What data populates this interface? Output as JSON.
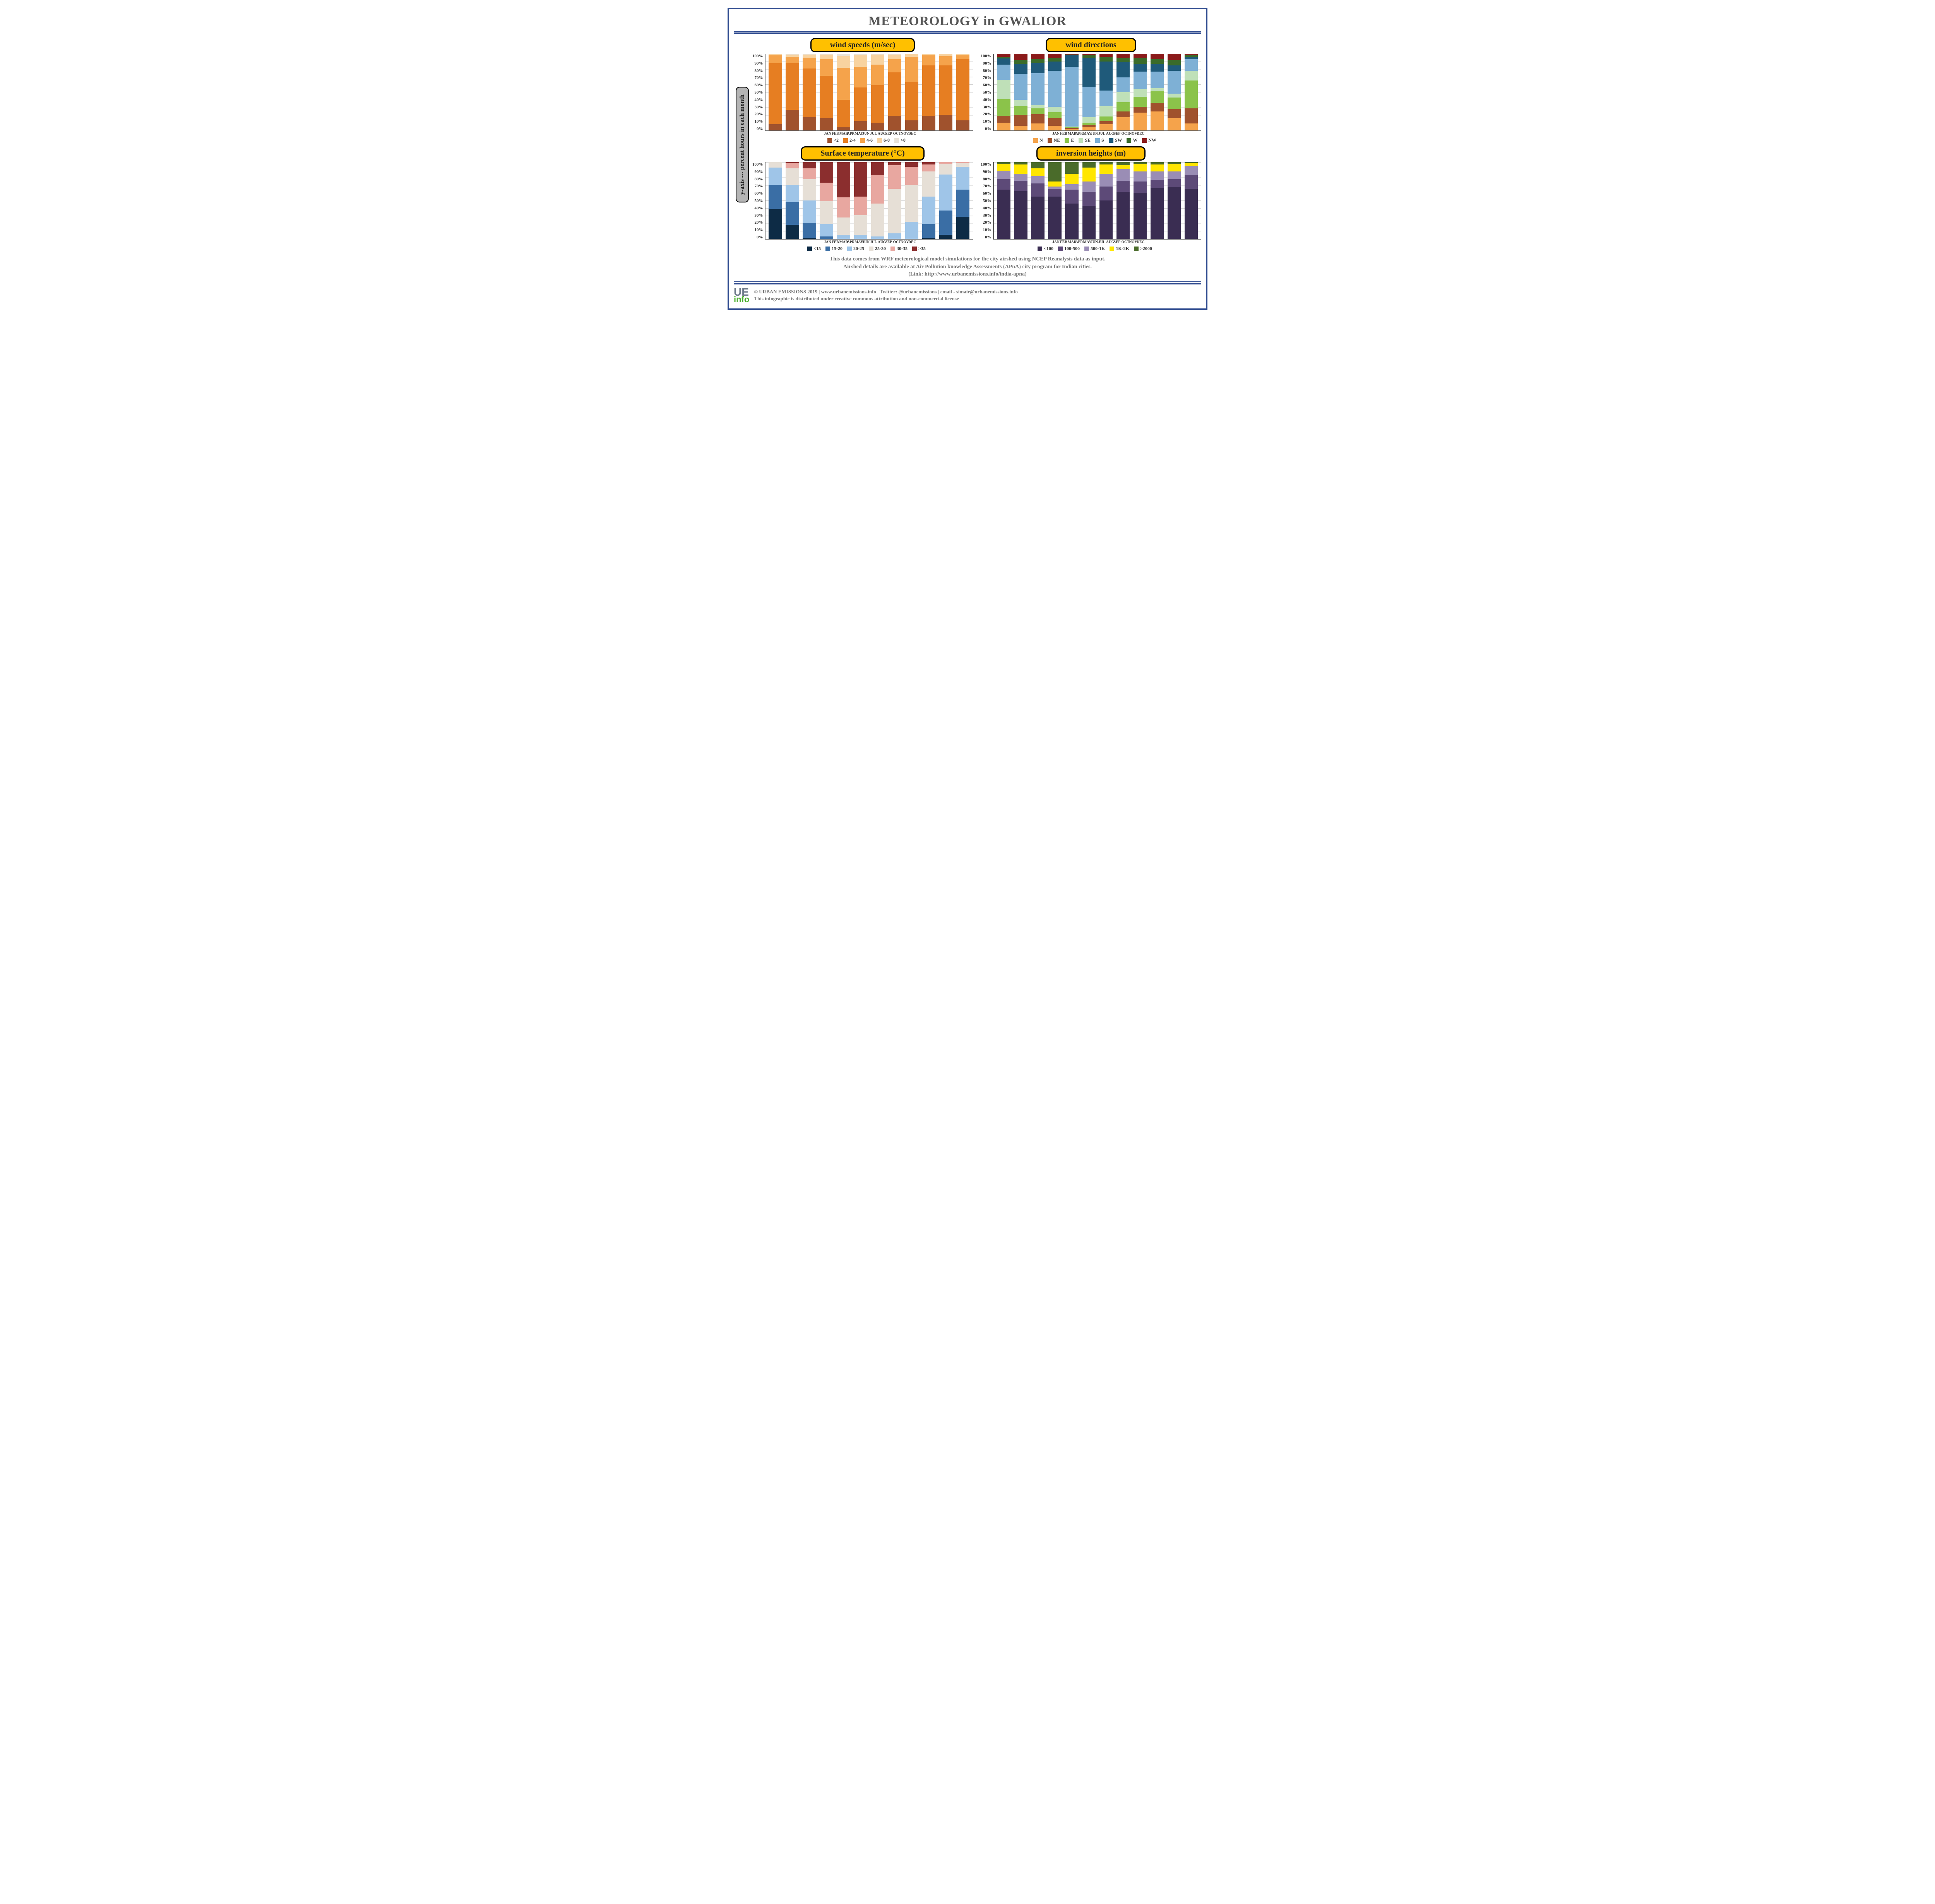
{
  "title": "METEOROLOGY in GWALIOR",
  "yaxis_label": "y-axis --- percent hours in each month",
  "months": [
    "JAN",
    "FEB",
    "MAR",
    "APR",
    "MAY",
    "JUN",
    "JUL",
    "AUG",
    "SEP",
    "OCT",
    "NOV",
    "DEC"
  ],
  "yticks": [
    "100%",
    "90%",
    "80%",
    "70%",
    "60%",
    "50%",
    "40%",
    "30%",
    "20%",
    "10%",
    "0%"
  ],
  "charts": {
    "wind_speeds": {
      "title": "wind speeds (m/sec)",
      "colors": [
        "#a0522d",
        "#e67e22",
        "#f5a34b",
        "#f8d3a0",
        "#e8e2d8"
      ],
      "legend": [
        "<2",
        "2-4",
        "4-6",
        "6-8",
        ">8"
      ],
      "series": [
        [
          8,
          80,
          10,
          2,
          0
        ],
        [
          27,
          61,
          8,
          3,
          1
        ],
        [
          17,
          64,
          14,
          4,
          1
        ],
        [
          16,
          55,
          22,
          6,
          1
        ],
        [
          4,
          36,
          42,
          15,
          3
        ],
        [
          12,
          44,
          27,
          15,
          2
        ],
        [
          10,
          49,
          27,
          13,
          1
        ],
        [
          19,
          57,
          17,
          6,
          1
        ],
        [
          13,
          50,
          33,
          4,
          0
        ],
        [
          19,
          66,
          13,
          2,
          0
        ],
        [
          20,
          65,
          12,
          3,
          0
        ],
        [
          13,
          80,
          5,
          2,
          0
        ]
      ]
    },
    "wind_directions": {
      "title": "wind directions",
      "colors": [
        "#f5a34b",
        "#a0522d",
        "#8bc34a",
        "#bfe0b8",
        "#7eb0d5",
        "#1f5a7a",
        "#3a6b2a",
        "#8b1a1a"
      ],
      "legend": [
        "N",
        "NE",
        "E",
        "SE",
        "S",
        "SW",
        "W",
        "NW"
      ],
      "series": [
        [
          10,
          9,
          22,
          25,
          20,
          8,
          2,
          4
        ],
        [
          6,
          14,
          12,
          8,
          34,
          13,
          5,
          8
        ],
        [
          9,
          12,
          8,
          4,
          42,
          13,
          5,
          7
        ],
        [
          6,
          10,
          8,
          7,
          47,
          12,
          5,
          5
        ],
        [
          2,
          1,
          1,
          1,
          78,
          15,
          1,
          1
        ],
        [
          4,
          3,
          3,
          7,
          40,
          38,
          3,
          2
        ],
        [
          8,
          4,
          6,
          14,
          20,
          38,
          6,
          4
        ],
        [
          17,
          8,
          12,
          13,
          19,
          20,
          6,
          5
        ],
        [
          23,
          8,
          13,
          10,
          23,
          10,
          8,
          5
        ],
        [
          25,
          11,
          15,
          4,
          22,
          10,
          6,
          7
        ],
        [
          16,
          12,
          15,
          5,
          30,
          7,
          7,
          8
        ],
        [
          9,
          20,
          36,
          13,
          15,
          3,
          2,
          2
        ]
      ]
    },
    "surface_temp": {
      "title": "Surface temperature (°C)",
      "colors": [
        "#0d2b45",
        "#3a6ea5",
        "#9fc5e8",
        "#e6dfd6",
        "#e8a7a0",
        "#8b2e2e"
      ],
      "legend": [
        "<15",
        "15-20",
        "20-25",
        "25-30",
        "30-35",
        ">35"
      ],
      "series": [
        [
          39,
          31,
          23,
          7,
          0,
          0
        ],
        [
          18,
          30,
          22,
          22,
          7,
          1
        ],
        [
          1,
          19,
          30,
          28,
          14,
          8
        ],
        [
          0,
          3,
          16,
          30,
          24,
          27
        ],
        [
          0,
          0,
          5,
          23,
          26,
          46
        ],
        [
          0,
          0,
          5,
          26,
          24,
          45
        ],
        [
          0,
          0,
          3,
          43,
          37,
          17
        ],
        [
          0,
          0,
          7,
          58,
          31,
          4
        ],
        [
          0,
          0,
          22,
          48,
          24,
          6
        ],
        [
          1,
          18,
          36,
          33,
          9,
          3
        ],
        [
          5,
          32,
          47,
          14,
          2,
          0
        ],
        [
          29,
          35,
          30,
          5,
          1,
          0
        ]
      ]
    },
    "inversion": {
      "title": "inversion heights (m)",
      "colors": [
        "#3a2d52",
        "#5d4a78",
        "#9a8db5",
        "#ffe600",
        "#4a6b2a"
      ],
      "legend": [
        "<100",
        "100-500",
        "500-1K",
        "1K-2K",
        ">2000"
      ],
      "series": [
        [
          64,
          14,
          11,
          9,
          2
        ],
        [
          62,
          14,
          9,
          12,
          3
        ],
        [
          55,
          17,
          10,
          10,
          8
        ],
        [
          55,
          10,
          3,
          7,
          25
        ],
        [
          46,
          18,
          7,
          14,
          15
        ],
        [
          43,
          18,
          14,
          18,
          7
        ],
        [
          50,
          18,
          17,
          12,
          3
        ],
        [
          61,
          15,
          15,
          5,
          4
        ],
        [
          60,
          15,
          13,
          10,
          2
        ],
        [
          66,
          11,
          11,
          9,
          3
        ],
        [
          67,
          11,
          10,
          10,
          2
        ],
        [
          65,
          18,
          12,
          4,
          1
        ]
      ]
    }
  },
  "footnote_lines": [
    "This data comes from WRF meteorological model simulations for the city airshed using NCEP Reanalysis data as input.",
    "Airshed details are available at Air Pollution knowledge Assessments (APnA) city program for Indian cities.",
    "(Link:  http://www.urbanemissions.info/india-apna)"
  ],
  "footer_lines": [
    "© URBAN EMISSIONS 2019 | www.urbanemissions.info | Twitter: @urbanemissions | email - simair@urbanemissions.info",
    "This infographic is distributed under creative commons attribution and non-commercial license"
  ],
  "logo": {
    "top": "UE",
    "bottom": "info"
  },
  "frame_color": "#2e4a8f",
  "title_color": "#555555",
  "pill_bg": "#ffc000"
}
